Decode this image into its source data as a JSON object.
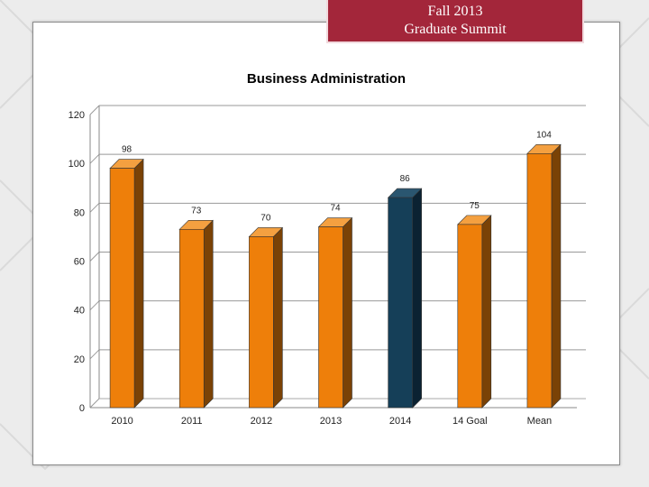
{
  "banner": {
    "line1": "Fall 2013",
    "line2": "Graduate Summit"
  },
  "colors": {
    "banner_bg": "#a3263a",
    "bar_orange": "#ee7f0a",
    "bar_orange_side": "#7a4206",
    "bar_highlight": "#153f58",
    "bar_highlight_side": "#0b2232"
  },
  "chart_data": {
    "type": "bar",
    "title": "Business Administration",
    "xlabel": "",
    "ylabel": "",
    "categories": [
      "2010",
      "2011",
      "2012",
      "2013",
      "2014",
      "14 Goal",
      "Mean"
    ],
    "values": [
      98,
      73,
      70,
      74,
      86,
      75,
      104
    ],
    "data_labels": [
      "98",
      "73",
      "70",
      "74",
      "86",
      "75",
      "104"
    ],
    "highlight_index": 4,
    "ylim": [
      0,
      120
    ],
    "yticks": [
      "0",
      "20",
      "40",
      "60",
      "80",
      "100",
      "120"
    ],
    "grid": true,
    "legend": "none",
    "style": "3d"
  }
}
